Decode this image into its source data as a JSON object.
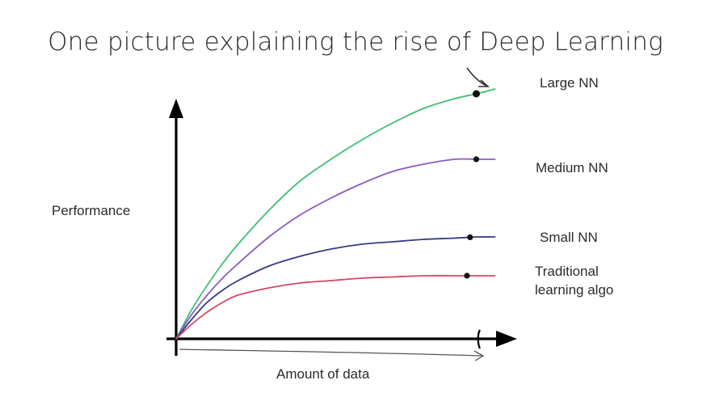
{
  "title": "One picture explaining the rise of Deep Learning",
  "chart_data": {
    "type": "line",
    "title": "One picture explaining the rise of Deep Learning",
    "xlabel": "Amount of data",
    "ylabel": "Performance",
    "xlim": [
      0,
      100
    ],
    "ylim": [
      0,
      100
    ],
    "grid": false,
    "legend": "none (series labels placed at right end of each curve)",
    "x": [
      0,
      5,
      10,
      15,
      20,
      30,
      40,
      50,
      60,
      70,
      80,
      90,
      97,
      103
    ],
    "series": [
      {
        "name": "Large NN",
        "color": "#3fbf73",
        "values": [
          0,
          12,
          22,
          31,
          39,
          53,
          65,
          74,
          82,
          89,
          95,
          99,
          101,
          103
        ],
        "label_lines": [
          "Large NN"
        ],
        "marked_point_x": 97
      },
      {
        "name": "Medium NN",
        "color": "#8a5cc0",
        "values": [
          0,
          10,
          18,
          25,
          31,
          42,
          51,
          58,
          64,
          69,
          72,
          74,
          74,
          74
        ],
        "label_lines": [
          "Medium NN"
        ],
        "marked_point_x": 97
      },
      {
        "name": "Small NN",
        "color": "#3a3a82",
        "values": [
          0,
          8,
          15,
          20,
          24,
          30,
          34,
          37,
          39,
          40,
          41,
          41.5,
          42,
          42
        ],
        "label_lines": [
          "Small NN"
        ],
        "marked_point_x": 95
      },
      {
        "name": "Traditional learning algo",
        "color": "#d24a63",
        "values": [
          0,
          6,
          11,
          15,
          18,
          21,
          23,
          24,
          25,
          25.5,
          26,
          26,
          26,
          26
        ],
        "label_lines": [
          "Traditional",
          "learning algo"
        ],
        "marked_point_x": 94
      }
    ]
  }
}
